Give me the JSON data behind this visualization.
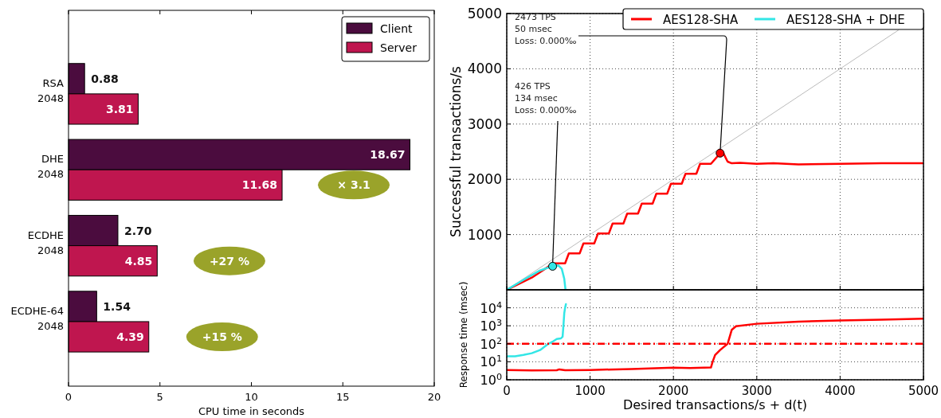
{
  "chart_data": [
    {
      "type": "bar",
      "orientation": "horizontal",
      "categories": [
        "RSA\n2048",
        "DHE\n2048",
        "ECDHE\n2048",
        "ECDHE-64\n2048"
      ],
      "series": [
        {
          "name": "Client",
          "color": "#4b0c3e",
          "values": [
            0.88,
            18.67,
            2.7,
            1.54
          ],
          "value_labels": [
            "0.88",
            "18.67",
            "2.70",
            "1.54"
          ]
        },
        {
          "name": "Server",
          "color": "#bf164f",
          "values": [
            3.81,
            11.68,
            4.85,
            4.39
          ],
          "value_labels": [
            "3.81",
            "11.68",
            "4.85",
            "4.39"
          ]
        }
      ],
      "xlim": [
        0,
        20
      ],
      "xticks": [
        0,
        5,
        10,
        15,
        20
      ],
      "xlabel": "CPU time in seconds",
      "legend": "top right",
      "annotations": [
        "× 3.1",
        "+27 %",
        "+15 %"
      ]
    },
    {
      "type": "line",
      "xlim": [
        0,
        5000
      ],
      "xticks": [
        0,
        1000,
        2000,
        3000,
        4000,
        5000
      ],
      "ylim": [
        0,
        5000
      ],
      "yticks": [
        {
          "value": 0,
          "label": null
        },
        1000,
        2000,
        3000,
        4000,
        5000
      ],
      "ylabel": "Successful transactions/s",
      "grid": true,
      "legend": "top right",
      "tick_labels": "y",
      "series": [
        {
          "color": "#bbbbbb",
          "x": [
            0,
            4700
          ],
          "values": [
            0,
            4700
          ]
        },
        {
          "name": "AES128-SHA",
          "color": "#ff0000",
          "x": [
            0,
            300,
            500,
            570,
            700,
            745,
            875,
            920,
            1050,
            1095,
            1225,
            1270,
            1400,
            1445,
            1575,
            1620,
            1750,
            1795,
            1925,
            1970,
            2100,
            2145,
            2275,
            2320,
            2450,
            2560,
            2600,
            2650,
            2700,
            2800,
            3000,
            3200,
            3500,
            4000,
            4500,
            5000
          ],
          "values": [
            0,
            220,
            420,
            480,
            480,
            660,
            660,
            840,
            840,
            1020,
            1020,
            1200,
            1200,
            1380,
            1380,
            1560,
            1560,
            1740,
            1740,
            1920,
            1920,
            2100,
            2100,
            2280,
            2280,
            2470,
            2470,
            2320,
            2290,
            2300,
            2280,
            2290,
            2270,
            2280,
            2290,
            2290
          ]
        },
        {
          "name": "AES128-SHA + DHE",
          "color": "#33e6e6",
          "x": [
            0,
            200,
            400,
            550,
            620,
            660,
            690,
            705
          ],
          "values": [
            0,
            180,
            350,
            430,
            440,
            380,
            200,
            0
          ]
        }
      ],
      "annotations": [
        {
          "text": "2473 TPS\n50 msec\nLoss: 0.000‰",
          "x": 2560,
          "y": 2473
        },
        {
          "text": "426 TPS\n134 msec\nLoss: 0.000‰",
          "x": 550,
          "y": 426
        }
      ]
    },
    {
      "type": "line",
      "log": "y",
      "xlim": [
        0,
        5000
      ],
      "xticks": [
        0,
        1000,
        2000,
        3000,
        4000,
        5000
      ],
      "ylim": [
        1,
        100000
      ],
      "yticks": [
        {
          "value": 1,
          "label": "10$^{0}$"
        },
        {
          "value": 10,
          "label": "10$^{1}$"
        },
        {
          "value": 100,
          "label": "10$^{2}$"
        },
        {
          "value": 1000,
          "label": "10$^{3}$"
        },
        {
          "value": 10000,
          "label": "10$^{4}$"
        },
        {
          "value": 100000,
          "label": null
        }
      ],
      "ylabel": "Response time (msec)",
      "xlabel": "Desired transactions/s + d(t)",
      "grid": true,
      "ref_lines": [
        {
          "axis": "y",
          "value": 100,
          "color": "#ff0000",
          "line_style": "dashed"
        }
      ],
      "series": [
        {
          "color": "#ff0000",
          "x": [
            0,
            300,
            600,
            630,
            700,
            1000,
            1500,
            2000,
            2200,
            2450,
            2470,
            2500,
            2560,
            2650,
            2700,
            2750,
            3000,
            3500,
            4000,
            4500,
            5000
          ],
          "values": [
            3.5,
            3.3,
            3.4,
            3.8,
            3.4,
            3.5,
            4,
            4.7,
            4.5,
            4.8,
            10,
            24,
            45,
            100,
            600,
            950,
            1300,
            1700,
            2000,
            2200,
            2500
          ]
        },
        {
          "color": "#33e6e6",
          "x": [
            0,
            100,
            200,
            300,
            400,
            500,
            560,
            600,
            650,
            670,
            680,
            690,
            700,
            710
          ],
          "values": [
            20,
            20,
            24,
            30,
            45,
            100,
            140,
            185,
            200,
            250,
            1000,
            5000,
            10000,
            16000
          ]
        }
      ]
    }
  ]
}
